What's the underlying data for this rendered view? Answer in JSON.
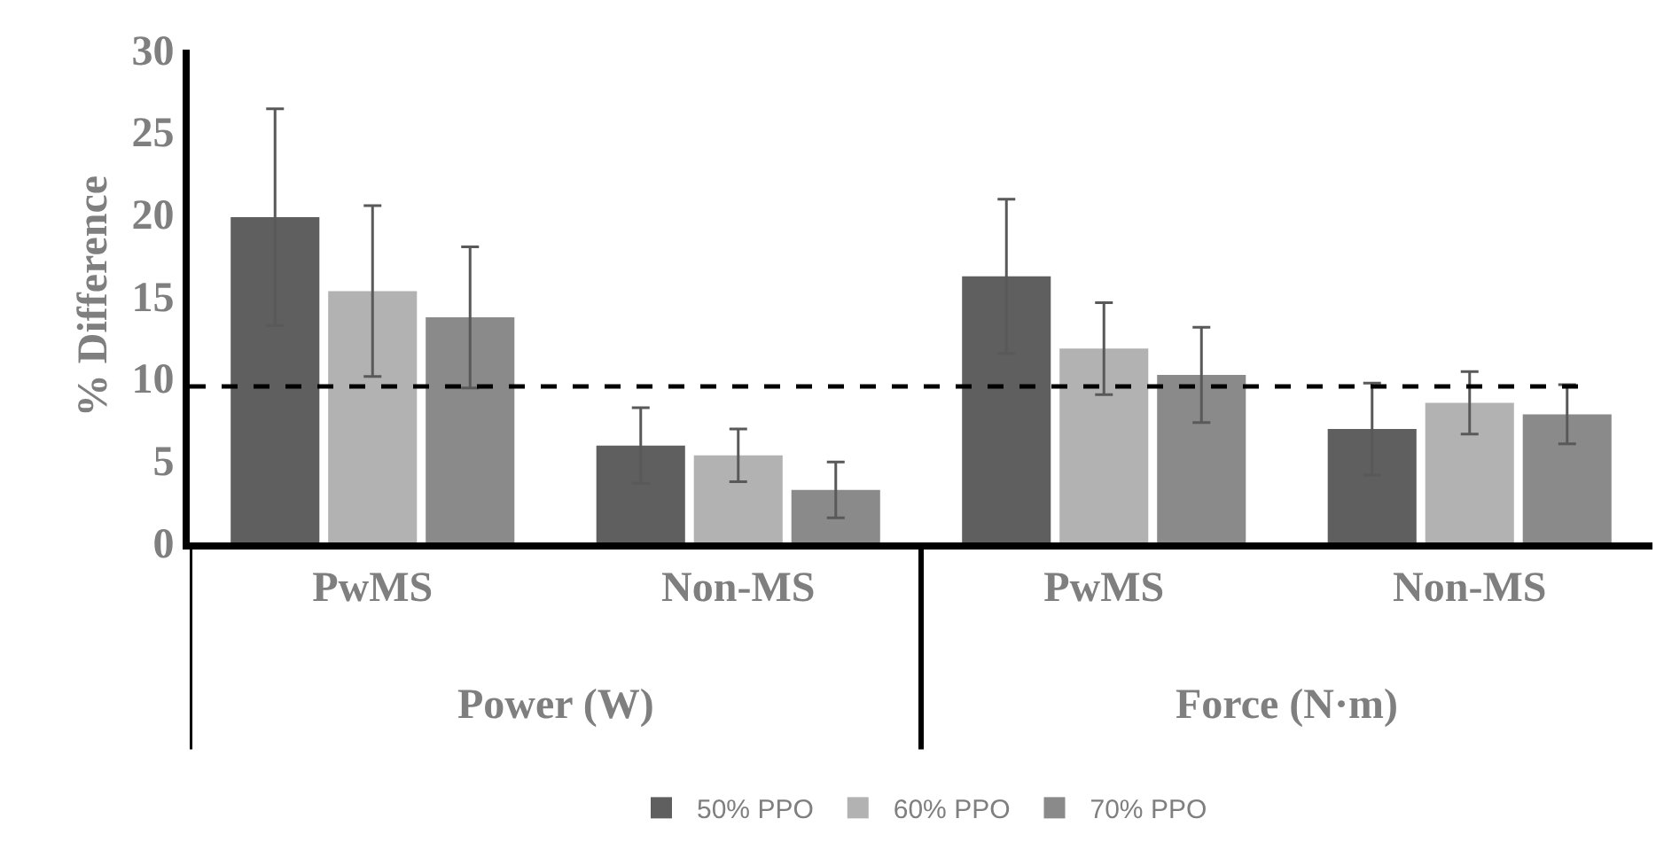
{
  "chart_data": {
    "type": "bar",
    "ylabel": "% Difference",
    "categories": [
      "PwMS",
      "Non-MS",
      "PwMS",
      "Non-MS"
    ],
    "series": [
      {
        "name": "50% PPO",
        "color": "#5f5f5f",
        "values": [
          19.8,
          5.9,
          16.2,
          6.9
        ],
        "errors": [
          6.6,
          2.3,
          4.7,
          2.8
        ]
      },
      {
        "name": "60% PPO",
        "color": "#b2b2b2",
        "values": [
          15.3,
          5.3,
          11.8,
          8.5
        ],
        "errors": [
          5.2,
          1.6,
          2.8,
          1.9
        ]
      },
      {
        "name": "70% PPO",
        "color": "#8a8a8a",
        "values": [
          13.7,
          3.2,
          10.2,
          7.8
        ],
        "errors": [
          4.3,
          1.7,
          2.9,
          1.8
        ]
      }
    ],
    "annotations": [
      "Power (W)",
      "Force (N·m)"
    ],
    "ylim": [
      0,
      30
    ],
    "yticks": [
      0,
      5,
      10,
      15,
      20,
      25,
      30
    ],
    "ref_lines": [
      {
        "axis": "y",
        "value": 9.5,
        "color": "#000000",
        "line_style": "dashed"
      }
    ],
    "legend": "bottom"
  }
}
